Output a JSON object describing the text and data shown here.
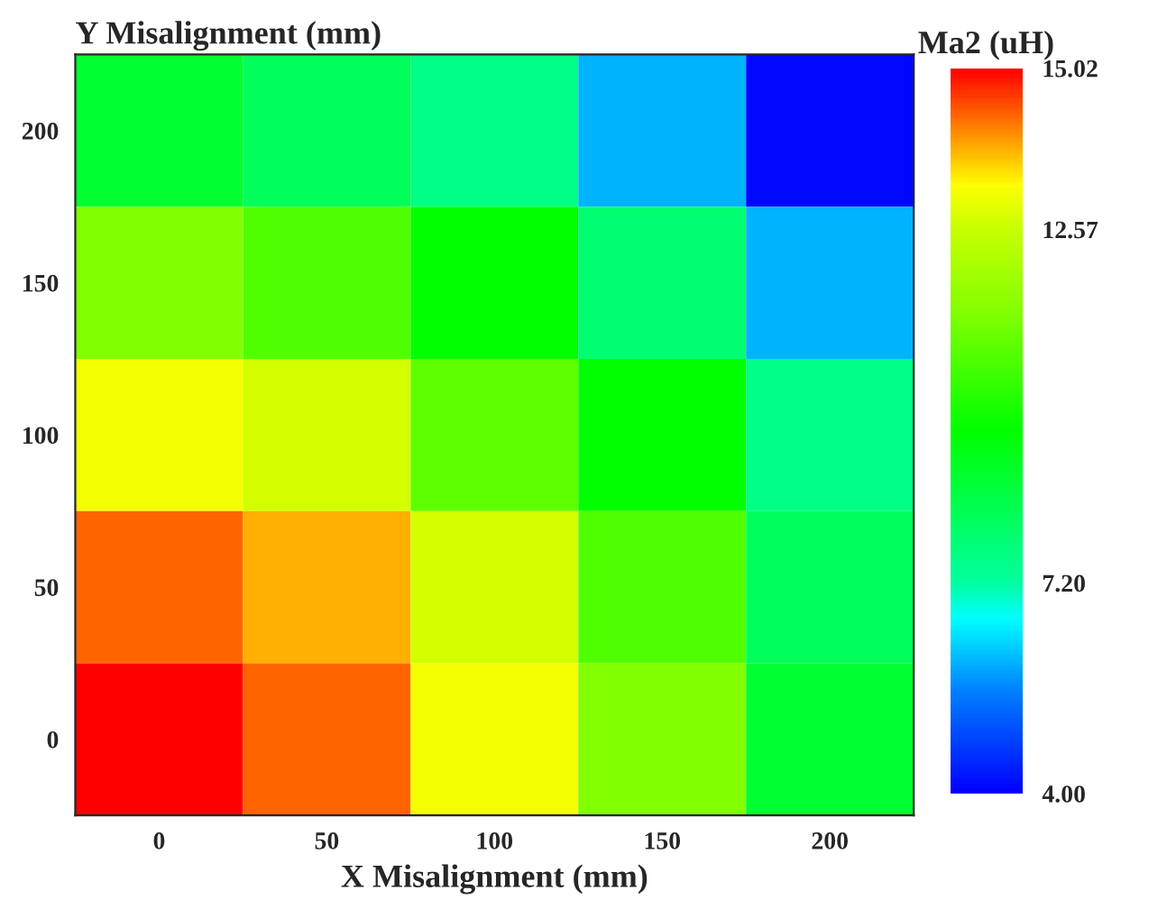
{
  "chart_data": {
    "type": "heatmap",
    "xlabel": "X Misalignment (mm)",
    "ylabel": "Y Misalignment (mm)",
    "clabel": "Ma2 (uH)",
    "categories": [
      "0",
      "50",
      "100",
      "150",
      "200"
    ],
    "y_categories": [
      "200",
      "150",
      "100",
      "50",
      "0"
    ],
    "clim": [
      4,
      15.02
    ],
    "cticks": [
      15.02,
      12.57,
      {
        "value": 7.2,
        "label": "7.20"
      },
      {
        "value": 4,
        "label": "4.00"
      }
    ],
    "cells": [
      [
        8.8,
        8.2,
        7.6,
        6.0,
        4.1
      ],
      [
        11.3,
        10.6,
        9.5,
        7.9,
        6.0
      ],
      [
        13.1,
        12.7,
        10.8,
        9.5,
        7.6
      ],
      [
        14.3,
        13.8,
        12.7,
        10.6,
        8.2
      ],
      [
        15.0,
        14.3,
        13.1,
        11.3,
        8.8
      ]
    ]
  }
}
